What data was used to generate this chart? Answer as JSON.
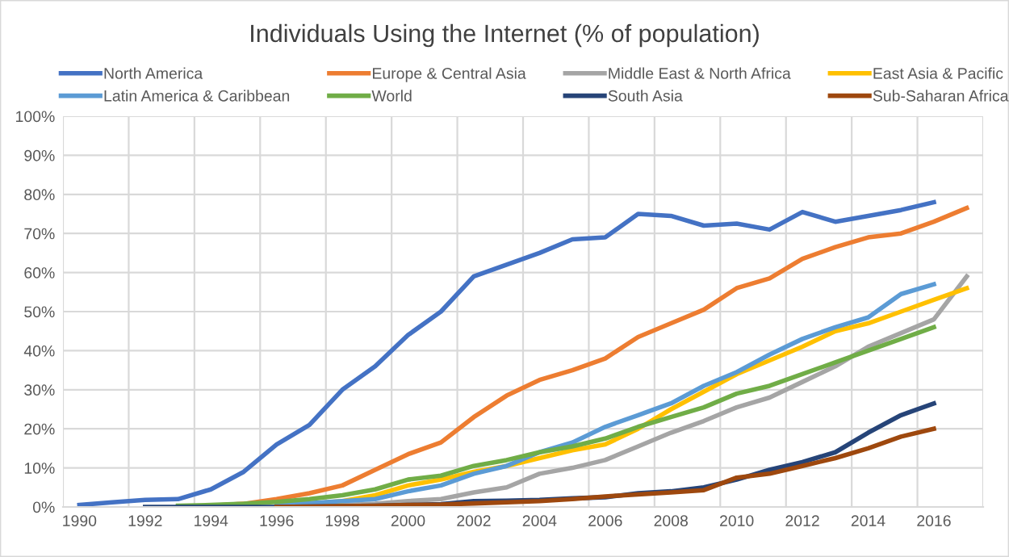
{
  "chart_data": {
    "type": "line",
    "title": "Individuals Using the Internet (% of population)",
    "categories": [
      "1990",
      null,
      "1992",
      null,
      "1994",
      null,
      "1996",
      null,
      "1998",
      null,
      "2000",
      null,
      "2002",
      null,
      "2004",
      null,
      "2006",
      null,
      "2008",
      null,
      "2010",
      null,
      "2012",
      null,
      "2014",
      null,
      "2016",
      null
    ],
    "series": [
      {
        "name": "North America",
        "color": "#4472c4",
        "values": [
          0.5,
          1.2,
          1.8,
          2.0,
          4.5,
          9,
          16,
          21,
          30,
          36,
          44,
          50,
          59,
          62,
          65,
          68.5,
          69,
          75,
          74.5,
          72,
          72.5,
          71,
          75.5,
          73,
          74.5,
          76,
          78,
          null
        ]
      },
      {
        "name": "Europe & Central Asia",
        "color": "#ed7d31",
        "values": [
          null,
          null,
          null,
          0,
          0.3,
          0.8,
          2,
          3.5,
          5.5,
          9.5,
          13.5,
          16.5,
          23,
          28.5,
          32.5,
          35,
          38,
          43.5,
          47,
          50.5,
          56,
          58.5,
          63.5,
          66.5,
          69,
          70,
          73,
          76.5
        ]
      },
      {
        "name": "Middle East & North Africa",
        "color": "#a5a5a5",
        "values": [
          null,
          null,
          null,
          0,
          0,
          0,
          null,
          0.3,
          0.5,
          0.8,
          1.5,
          2,
          3.7,
          5,
          8.5,
          10,
          12,
          15.5,
          19,
          22,
          25.5,
          28,
          32,
          36,
          41,
          44.5,
          48,
          59
        ]
      },
      {
        "name": "East Asia & Pacific",
        "color": "#ffc000",
        "values": [
          null,
          null,
          null,
          null,
          null,
          null,
          null,
          0.8,
          1.5,
          3,
          5.5,
          7,
          9,
          10.5,
          12.5,
          14.5,
          16,
          20,
          25,
          29.5,
          34,
          37.5,
          41,
          45,
          47,
          50,
          53,
          56
        ]
      },
      {
        "name": "Latin America & Caribbean",
        "color": "#5b9bd5",
        "values": [
          null,
          null,
          null,
          null,
          null,
          null,
          0.7,
          1,
          1.5,
          2,
          4,
          5.5,
          8.5,
          10.5,
          14,
          16.5,
          20.5,
          23.5,
          26.5,
          31,
          34.5,
          39,
          43,
          46,
          48.5,
          54.5,
          57,
          null
        ]
      },
      {
        "name": "World",
        "color": "#70ad47",
        "values": [
          null,
          null,
          null,
          0.3,
          0.5,
          0.8,
          1.3,
          2,
          3,
          4.5,
          7,
          8,
          10.5,
          12,
          14,
          15.5,
          17.5,
          20.5,
          23,
          25.5,
          29,
          31,
          34,
          37,
          40,
          43,
          46,
          null
        ]
      },
      {
        "name": "South Asia",
        "color": "#264478",
        "values": [
          null,
          null,
          0,
          0,
          0,
          0,
          0,
          0.1,
          0.2,
          0.3,
          0.5,
          0.7,
          1.5,
          1.6,
          1.8,
          2.2,
          2.5,
          3.5,
          4,
          5,
          7,
          9.5,
          11.5,
          14,
          19,
          23.5,
          26.5,
          null
        ]
      },
      {
        "name": "Sub-Saharan Africa",
        "color": "#9e480e",
        "values": [
          null,
          null,
          null,
          null,
          null,
          null,
          0,
          0.1,
          0.2,
          0.3,
          0.5,
          0.6,
          0.9,
          1.2,
          1.5,
          2,
          2.7,
          3.2,
          3.7,
          4.3,
          7.5,
          8.5,
          10.5,
          12.5,
          15,
          18,
          20,
          null
        ]
      }
    ],
    "ylim": [
      0,
      100
    ],
    "yticks": [
      {
        "value": 0,
        "label": "0%"
      },
      {
        "value": 10,
        "label": "10%"
      },
      {
        "value": 20,
        "label": "20%"
      },
      {
        "value": 30,
        "label": "30%"
      },
      {
        "value": 40,
        "label": "40%"
      },
      {
        "value": 50,
        "label": "50%"
      },
      {
        "value": 60,
        "label": "60%"
      },
      {
        "value": 70,
        "label": "70%"
      },
      {
        "value": 80,
        "label": "80%"
      },
      {
        "value": 90,
        "label": "90%"
      },
      {
        "value": 100,
        "label": "100%"
      }
    ],
    "grid": true,
    "legend": "top",
    "marker": "none",
    "line_style": "solid"
  }
}
